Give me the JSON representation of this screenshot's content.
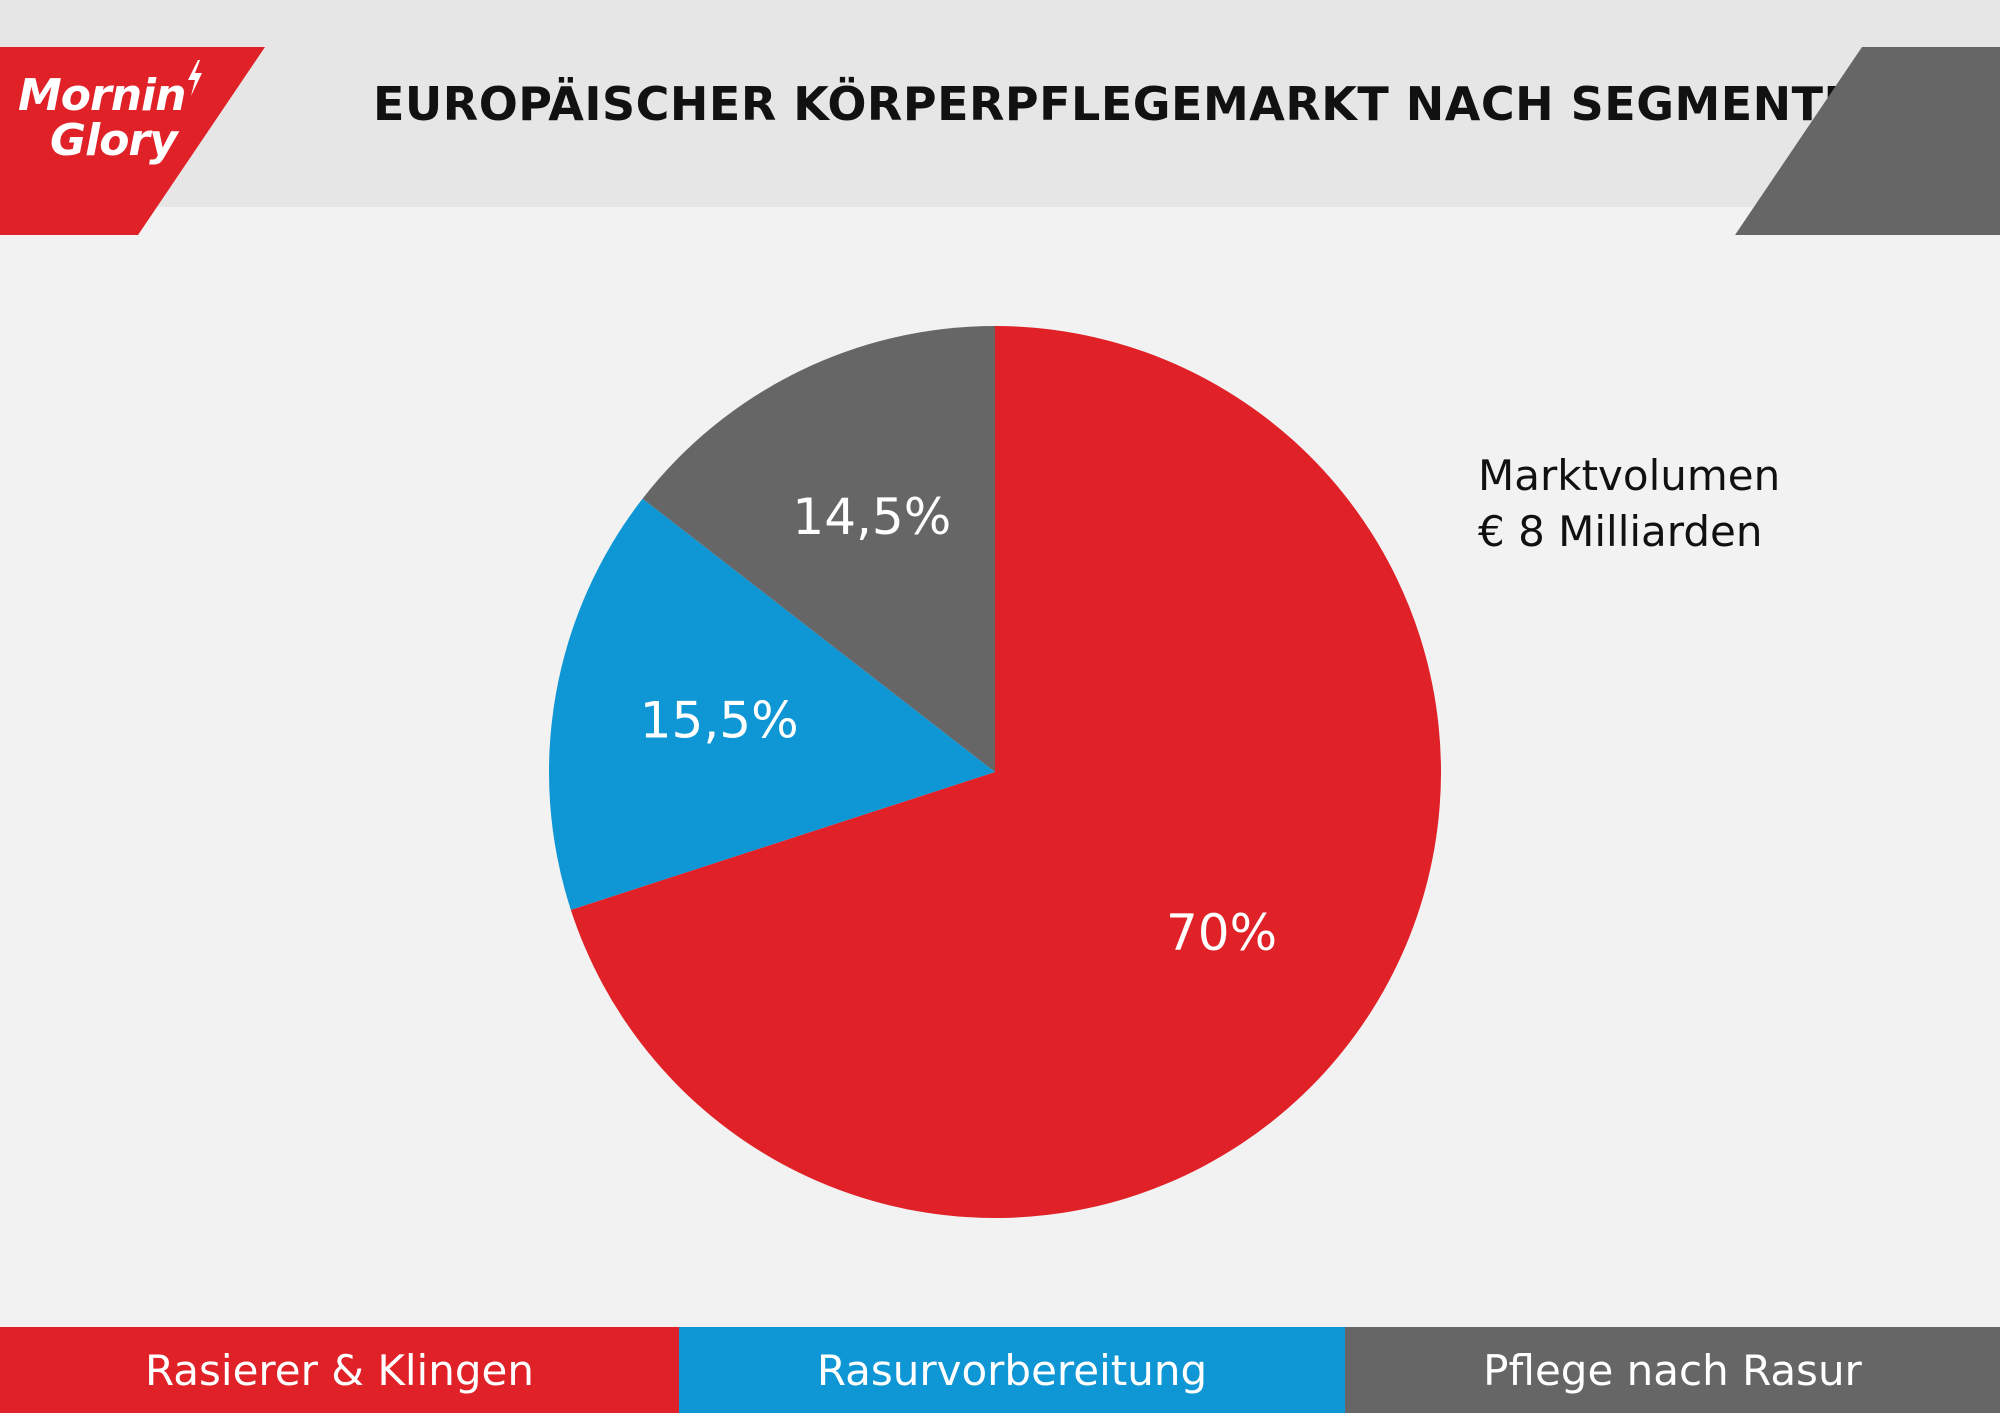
{
  "header": {
    "title": "EUROPÄISCHER KÖRPERPFLEGEMARKT NACH SEGMENTEN",
    "logo_line1": "Mornin",
    "logo_line2": "Glory",
    "logo_icon": "lightning-bolt-icon"
  },
  "colors": {
    "red": "#e02128",
    "blue": "#0f96d4",
    "gray": "#666666",
    "header_bg": "#e6e6e6",
    "page_bg": "#f2f2f2"
  },
  "market_volume": {
    "line1": "Marktvolumen",
    "line2": "€ 8 Milliarden"
  },
  "chart_data": {
    "type": "pie",
    "title": "EUROPÄISCHER KÖRPERPFLEGEMARKT NACH SEGMENTEN",
    "unit": "%",
    "slices": [
      {
        "name": "Rasierer & Klingen",
        "value": 70,
        "label": "70%",
        "color": "#e02128"
      },
      {
        "name": "Rasurvorbereitung",
        "value": 15.5,
        "label": "15,5%",
        "color": "#0f96d4"
      },
      {
        "name": "Pflege nach Rasur",
        "value": 14.5,
        "label": "14,5%",
        "color": "#666666"
      }
    ],
    "start_angle_deg": 0,
    "direction": "clockwise",
    "legend_position": "bottom"
  }
}
